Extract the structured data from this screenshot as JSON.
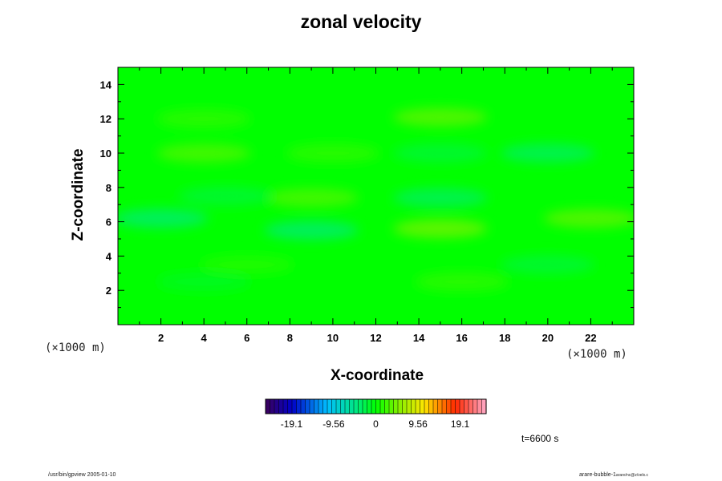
{
  "chart_data": {
    "type": "heatmap",
    "title": "zonal velocity",
    "xlabel": "X-coordinate",
    "ylabel": "Z-coordinate",
    "x_unit": "(×1000 m)",
    "y_unit": "(×1000 m)",
    "xlim": [
      0,
      24
    ],
    "ylim": [
      0,
      15
    ],
    "x_ticks": [
      2,
      4,
      6,
      8,
      10,
      12,
      14,
      16,
      18,
      20,
      22
    ],
    "y_ticks": [
      2,
      4,
      6,
      8,
      10,
      12,
      14
    ],
    "x_minor_ticks": [
      1,
      3,
      5,
      7,
      9,
      11,
      13,
      15,
      17,
      19,
      21,
      23
    ],
    "y_minor_ticks": [
      1,
      3,
      5,
      7,
      9,
      11,
      13
    ],
    "colorbar": {
      "range": [
        -25,
        25
      ],
      "tick_values": [
        -19.1,
        -9.56,
        0,
        9.56,
        19.1
      ],
      "tick_labels": [
        "-19.1",
        "-9.56",
        "0",
        "9.56",
        "19.1"
      ]
    },
    "field_background_value": 0,
    "features": [
      {
        "x": 4,
        "z": 10,
        "value": 2.5
      },
      {
        "x": 10,
        "z": 10,
        "value": 1.5
      },
      {
        "x": 4,
        "z": 12,
        "value": 1.5
      },
      {
        "x": 15,
        "z": 12.1,
        "value": 3.0
      },
      {
        "x": 20,
        "z": 10,
        "value": -2.5
      },
      {
        "x": 15,
        "z": 10,
        "value": -1.5
      },
      {
        "x": 9,
        "z": 7.4,
        "value": 2.5
      },
      {
        "x": 5,
        "z": 7.5,
        "value": -1.5
      },
      {
        "x": 15,
        "z": 7.4,
        "value": -2.5
      },
      {
        "x": 2,
        "z": 6.2,
        "value": -3.0
      },
      {
        "x": 9,
        "z": 5.5,
        "value": -3.0
      },
      {
        "x": 15,
        "z": 5.6,
        "value": 3.5
      },
      {
        "x": 22,
        "z": 6.2,
        "value": 3.0
      },
      {
        "x": 20,
        "z": 3.5,
        "value": -1.5
      },
      {
        "x": 6,
        "z": 3.5,
        "value": 1.0
      },
      {
        "x": 16,
        "z": 2.5,
        "value": 1.5
      },
      {
        "x": 4,
        "z": 2.5,
        "value": -1.0
      }
    ]
  },
  "annotations": {
    "time": "t=6600 s",
    "footer_left": "/usr/bin/gpview 2005-01-10",
    "footer_right_main": "arare-bubble-1",
    "footer_right_sub": "arare/nc@z/velx.c"
  }
}
